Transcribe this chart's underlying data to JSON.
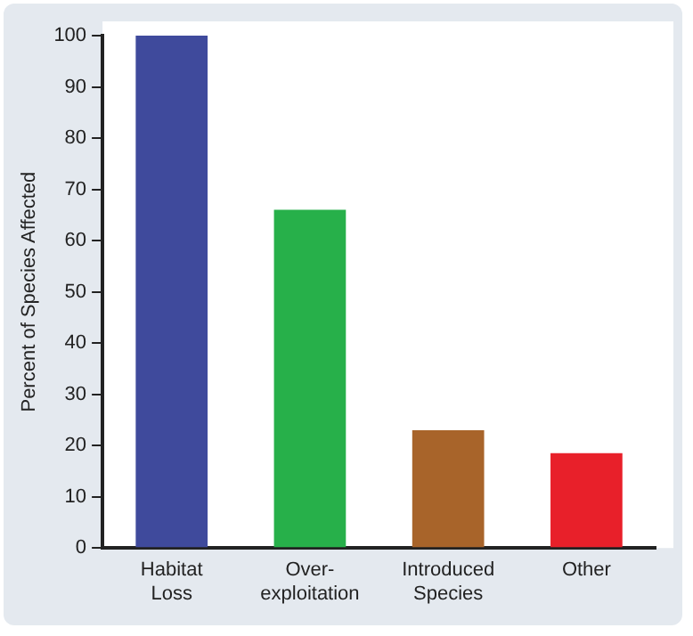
{
  "chart_data": {
    "type": "bar",
    "ylabel": "Percent of Species Affected",
    "categories": [
      "Habitat\nLoss",
      "Over-\nexploitation",
      "Introduced\nSpecies",
      "Other"
    ],
    "values": [
      100,
      66,
      23,
      18.5
    ],
    "colors": [
      "#3f4a9c",
      "#27b04a",
      "#a8642a",
      "#e8202a"
    ],
    "ylim": [
      0,
      100
    ],
    "yticks": [
      0,
      10,
      20,
      30,
      40,
      50,
      60,
      70,
      80,
      90,
      100
    ],
    "grid": false
  }
}
